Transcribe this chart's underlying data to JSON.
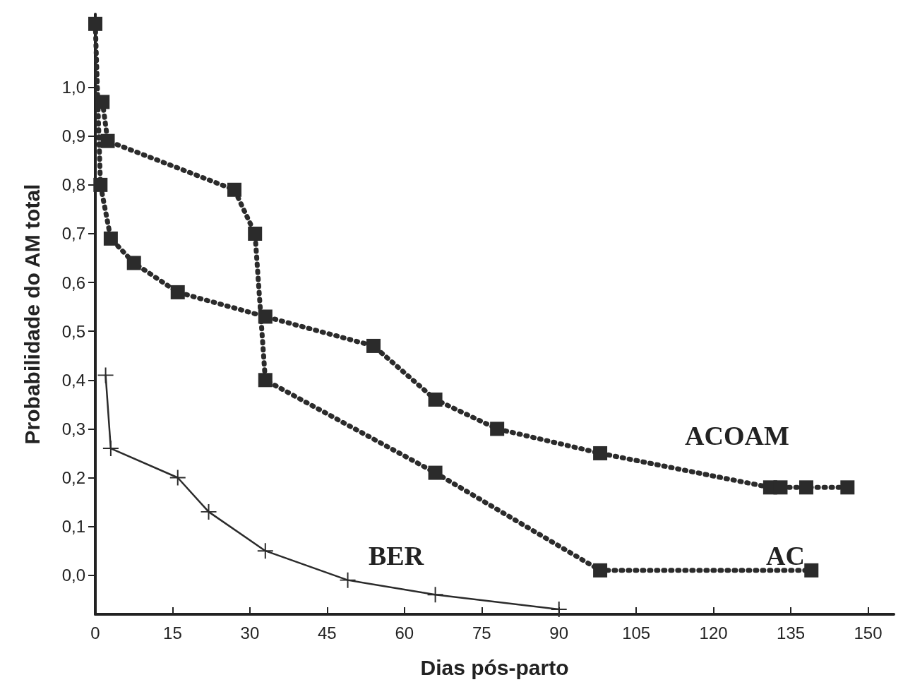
{
  "chart_data": {
    "type": "line",
    "xlabel": "Dias pós-parto",
    "ylabel": "Probabilidade do AM total",
    "xlim": [
      0,
      155
    ],
    "xticks": [
      0,
      15,
      30,
      45,
      60,
      75,
      90,
      105,
      120,
      135,
      150
    ],
    "ylim": [
      -0.08,
      1.15
    ],
    "yticks": [
      {
        "value": 0,
        "label": "0,0"
      },
      {
        "value": 0.1,
        "label": "0,1"
      },
      {
        "value": 0.2,
        "label": "0,2"
      },
      {
        "value": 0.3,
        "label": "0,3"
      },
      {
        "value": 0.4,
        "label": "0,4"
      },
      {
        "value": 0.5,
        "label": "0,5"
      },
      {
        "value": 0.6,
        "label": "0,6"
      },
      {
        "value": 0.7,
        "label": "0,7"
      },
      {
        "value": 0.8,
        "label": "0,8"
      },
      {
        "value": 0.9,
        "label": "0,9"
      },
      {
        "value": 1.0,
        "label": "1,0"
      }
    ],
    "grid": false,
    "series": [
      {
        "color": "#2b2b2b",
        "marker": "square",
        "line_style": "dotted",
        "x": [
          0,
          1,
          3,
          7.5,
          16,
          33,
          54,
          66,
          78,
          98,
          131,
          133,
          138,
          146
        ],
        "values": [
          1.13,
          0.8,
          0.69,
          0.64,
          0.58,
          0.53,
          0.47,
          0.36,
          0.3,
          0.25,
          0.18,
          0.18,
          0.18,
          0.18
        ]
      },
      {
        "color": "#2b2b2b",
        "marker": "square",
        "line_style": "dotted",
        "x": [
          1.4,
          2.4,
          27,
          31,
          33,
          66,
          98,
          139
        ],
        "values": [
          0.97,
          0.89,
          0.79,
          0.7,
          0.4,
          0.21,
          0.01,
          0.01
        ]
      },
      {
        "color": "#2b2b2b",
        "marker": "cross",
        "line_style": "solid",
        "x": [
          2,
          3,
          16,
          22,
          33,
          49,
          66,
          90
        ],
        "values": [
          0.41,
          0.26,
          0.2,
          0.13,
          0.05,
          -0.01,
          -0.04,
          -0.07
        ]
      }
    ],
    "annotations": [
      "ACOAM",
      "AC",
      "BER"
    ]
  }
}
